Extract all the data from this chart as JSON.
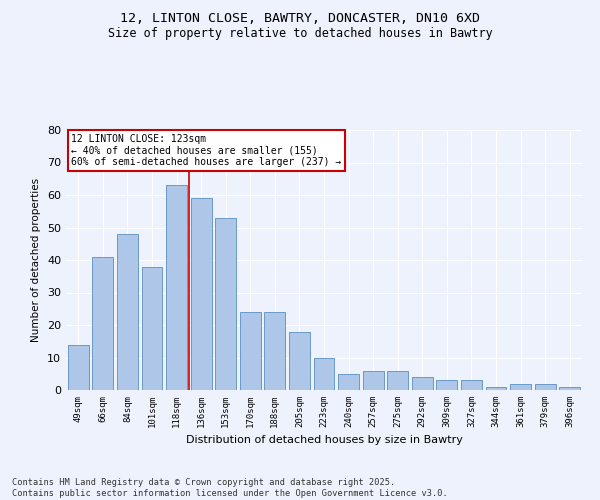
{
  "title_line1": "12, LINTON CLOSE, BAWTRY, DONCASTER, DN10 6XD",
  "title_line2": "Size of property relative to detached houses in Bawtry",
  "xlabel": "Distribution of detached houses by size in Bawtry",
  "ylabel": "Number of detached properties",
  "categories": [
    "49sqm",
    "66sqm",
    "84sqm",
    "101sqm",
    "118sqm",
    "136sqm",
    "153sqm",
    "170sqm",
    "188sqm",
    "205sqm",
    "223sqm",
    "240sqm",
    "257sqm",
    "275sqm",
    "292sqm",
    "309sqm",
    "327sqm",
    "344sqm",
    "361sqm",
    "379sqm",
    "396sqm"
  ],
  "values": [
    14,
    41,
    48,
    38,
    63,
    59,
    53,
    24,
    24,
    18,
    10,
    5,
    6,
    6,
    4,
    3,
    3,
    1,
    2,
    2,
    1
  ],
  "bar_color": "#aec6e8",
  "bar_edge_color": "#5a8fc2",
  "annotation_text": "12 LINTON CLOSE: 123sqm\n← 40% of detached houses are smaller (155)\n60% of semi-detached houses are larger (237) →",
  "annotation_box_color": "#ffffff",
  "annotation_box_edge": "#cc0000",
  "redline_x": 4.5,
  "ylim": [
    0,
    80
  ],
  "yticks": [
    0,
    10,
    20,
    30,
    40,
    50,
    60,
    70,
    80
  ],
  "background_color": "#eef2fc",
  "grid_color": "#ffffff",
  "footer_text": "Contains HM Land Registry data © Crown copyright and database right 2025.\nContains public sector information licensed under the Open Government Licence v3.0."
}
